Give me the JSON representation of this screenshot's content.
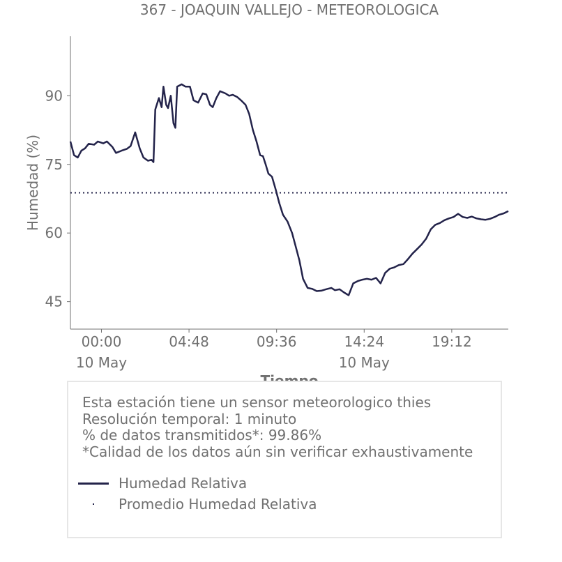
{
  "chart_data": {
    "type": "line",
    "title": "367 - JOAQUIN VALLEJO - METEOROLOGICA",
    "xlabel": "Tiempo",
    "ylabel": "Humedad (%)",
    "x_ticks": [
      "00:00",
      "04:48",
      "09:36",
      "14:24",
      "19:12"
    ],
    "x_date_labels": [
      "10 May",
      "",
      "",
      "10 May",
      ""
    ],
    "y_ticks": [
      45,
      60,
      75,
      90
    ],
    "ylim": [
      39,
      103
    ],
    "xlim_hours": [
      -1.7,
      22.3
    ],
    "grid": false,
    "legend_position": "bottom",
    "series": [
      {
        "name": "Humedad Relativa",
        "color": "#23234a",
        "style": "solid",
        "points": [
          [
            -1.7,
            80
          ],
          [
            -1.5,
            77
          ],
          [
            -1.3,
            76.5
          ],
          [
            -1.1,
            78
          ],
          [
            -0.9,
            78.5
          ],
          [
            -0.7,
            79.5
          ],
          [
            -0.4,
            79.3
          ],
          [
            -0.2,
            80
          ],
          [
            0.1,
            79.6
          ],
          [
            0.3,
            80
          ],
          [
            0.6,
            78.8
          ],
          [
            0.8,
            77.5
          ],
          [
            1.1,
            78
          ],
          [
            1.4,
            78.4
          ],
          [
            1.6,
            79
          ],
          [
            1.85,
            82
          ],
          [
            2.1,
            78.5
          ],
          [
            2.3,
            76.5
          ],
          [
            2.55,
            75.8
          ],
          [
            2.75,
            76
          ],
          [
            2.85,
            75.5
          ],
          [
            2.95,
            87
          ],
          [
            3.15,
            89.5
          ],
          [
            3.3,
            87.5
          ],
          [
            3.4,
            92
          ],
          [
            3.55,
            88
          ],
          [
            3.65,
            87.3
          ],
          [
            3.8,
            90
          ],
          [
            3.95,
            84
          ],
          [
            4.05,
            83
          ],
          [
            4.15,
            92
          ],
          [
            4.4,
            92.5
          ],
          [
            4.6,
            92
          ],
          [
            4.85,
            92
          ],
          [
            5.05,
            89
          ],
          [
            5.3,
            88.5
          ],
          [
            5.55,
            90.5
          ],
          [
            5.75,
            90.3
          ],
          [
            5.95,
            88
          ],
          [
            6.1,
            87.5
          ],
          [
            6.3,
            89.5
          ],
          [
            6.5,
            91
          ],
          [
            6.8,
            90.5
          ],
          [
            7.0,
            90
          ],
          [
            7.2,
            90.2
          ],
          [
            7.45,
            89.7
          ],
          [
            7.65,
            89
          ],
          [
            7.9,
            88
          ],
          [
            8.1,
            86
          ],
          [
            8.3,
            82.5
          ],
          [
            8.5,
            80
          ],
          [
            8.7,
            77
          ],
          [
            8.85,
            76.8
          ],
          [
            9.0,
            75
          ],
          [
            9.15,
            73
          ],
          [
            9.35,
            72.3
          ],
          [
            9.55,
            69.5
          ],
          [
            9.75,
            66.5
          ],
          [
            9.95,
            64
          ],
          [
            10.2,
            62.5
          ],
          [
            10.45,
            60
          ],
          [
            10.65,
            57
          ],
          [
            10.85,
            54
          ],
          [
            11.05,
            50
          ],
          [
            11.3,
            48
          ],
          [
            11.55,
            47.8
          ],
          [
            11.8,
            47.3
          ],
          [
            12.05,
            47.4
          ],
          [
            12.3,
            47.7
          ],
          [
            12.6,
            48
          ],
          [
            12.8,
            47.5
          ],
          [
            13.05,
            47.7
          ],
          [
            13.3,
            47
          ],
          [
            13.55,
            46.4
          ],
          [
            13.8,
            49
          ],
          [
            14.05,
            49.5
          ],
          [
            14.3,
            49.8
          ],
          [
            14.55,
            50
          ],
          [
            14.8,
            49.8
          ],
          [
            15.05,
            50.2
          ],
          [
            15.3,
            49
          ],
          [
            15.55,
            51.3
          ],
          [
            15.8,
            52.2
          ],
          [
            16.05,
            52.5
          ],
          [
            16.3,
            53
          ],
          [
            16.55,
            53.2
          ],
          [
            16.8,
            54.3
          ],
          [
            17.05,
            55.5
          ],
          [
            17.3,
            56.5
          ],
          [
            17.55,
            57.5
          ],
          [
            17.8,
            58.8
          ],
          [
            18.05,
            60.8
          ],
          [
            18.3,
            61.8
          ],
          [
            18.55,
            62.2
          ],
          [
            18.8,
            62.8
          ],
          [
            19.05,
            63.2
          ],
          [
            19.3,
            63.5
          ],
          [
            19.55,
            64.2
          ],
          [
            19.8,
            63.5
          ],
          [
            20.05,
            63.3
          ],
          [
            20.3,
            63.6
          ],
          [
            20.55,
            63.2
          ],
          [
            20.8,
            63
          ],
          [
            21.05,
            62.9
          ],
          [
            21.3,
            63.1
          ],
          [
            21.55,
            63.5
          ],
          [
            21.8,
            64
          ],
          [
            22.05,
            64.3
          ],
          [
            22.3,
            64.8
          ]
        ]
      },
      {
        "name": "Promedio Humedad Relativa",
        "color": "#23234a",
        "style": "dotted",
        "value": 68.8
      }
    ]
  },
  "info": {
    "lines": [
      "Esta estación tiene un sensor meteorologico thies",
      "Resolución temporal: 1 minuto",
      "% de datos transmitidos*: 99.86%",
      "*Calidad de los datos aún sin verificar exhaustivamente"
    ]
  },
  "legend": [
    {
      "label": "Humedad Relativa",
      "color": "#23234a",
      "style": "solid"
    },
    {
      "label": "Promedio Humedad Relativa",
      "color": "#23234a",
      "style": "dotted"
    }
  ]
}
